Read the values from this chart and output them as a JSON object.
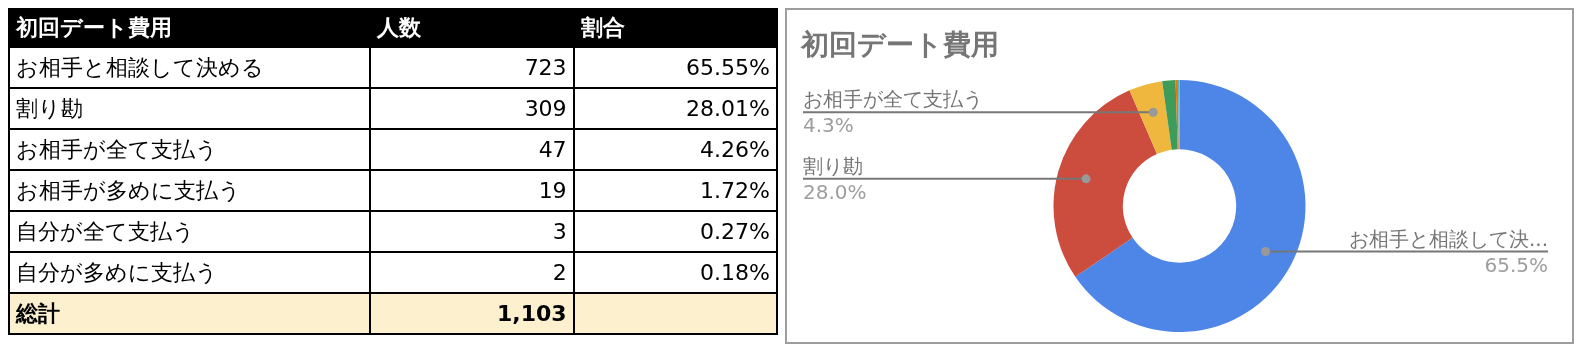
{
  "chart_data": [
    {
      "type": "other",
      "title": "初回デート費用",
      "categories": [
        "人数",
        "割合"
      ],
      "y_categories": [
        "お相手と相談して決める",
        "割り勘",
        "お相手が全て支払う",
        "お相手が多めに支払う",
        "自分が全て支払う",
        "自分が多めに支払う",
        "総計"
      ],
      "cell_labels": [
        [
          "723",
          "65.55%"
        ],
        [
          "309",
          "28.01%"
        ],
        [
          "47",
          "4.26%"
        ],
        [
          "19",
          "1.72%"
        ],
        [
          "3",
          "0.27%"
        ],
        [
          "2",
          "0.18%"
        ],
        [
          "1,103",
          null
        ]
      ]
    },
    {
      "type": "donut",
      "title": "初回デート費用",
      "categories": [
        "お相手と相談して決...",
        "割り勘",
        "お相手が全て支払う",
        null,
        null,
        null
      ],
      "values": [
        65.5,
        28.0,
        4.3,
        1.7,
        0.3,
        0.2
      ],
      "colors": [
        "#4e86e8",
        "#cc4c3d",
        "#efb73e",
        "#3f9b5a",
        "#ff6d01",
        "#46bdc6"
      ],
      "value_labels": [
        "65.5%",
        "28.0%",
        "4.3%",
        null,
        null,
        null
      ]
    }
  ]
}
